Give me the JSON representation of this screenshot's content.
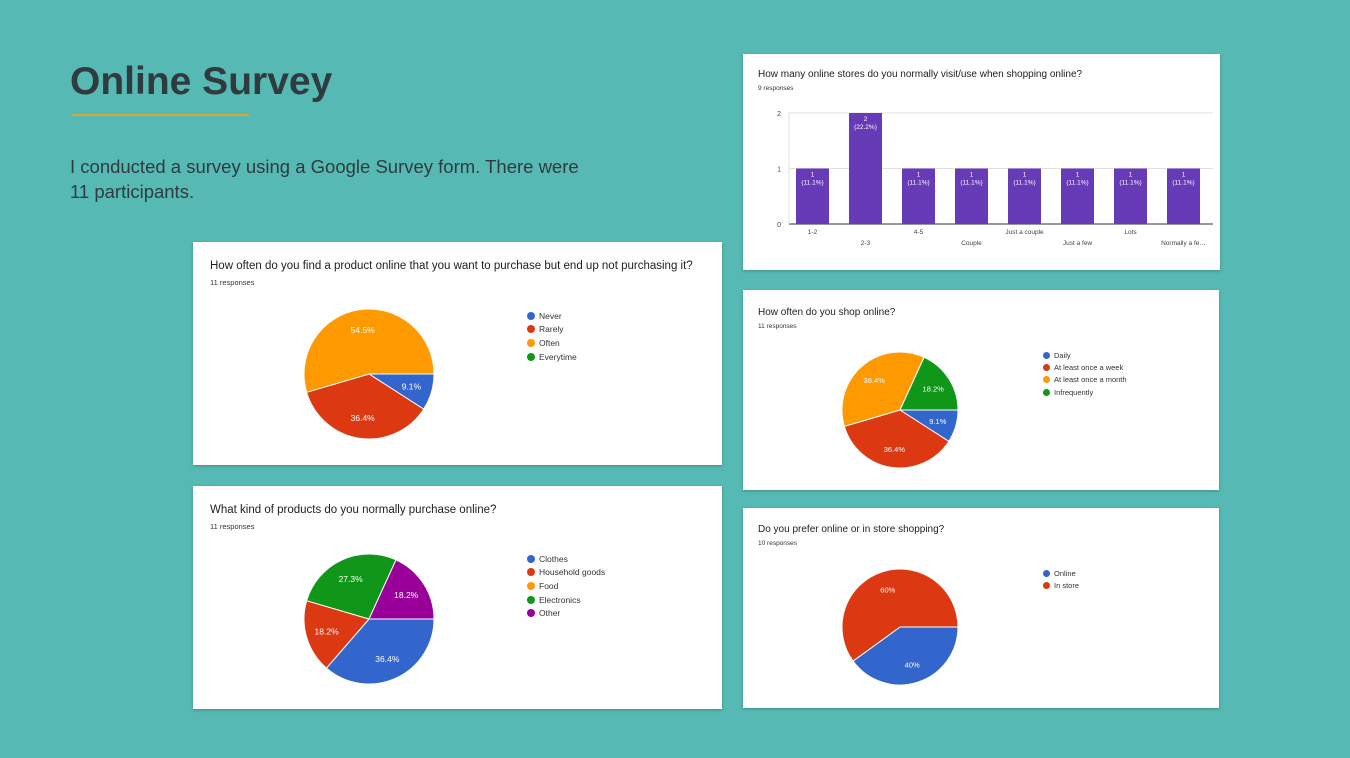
{
  "slide": {
    "title": "Online Survey",
    "intro": "I conducted a survey using a Google Survey form. There were 11 participants."
  },
  "colors": {
    "background": "#57b9b3",
    "rule": "#d3a93a",
    "blue": "#3366cc",
    "red": "#dc3912",
    "orange": "#ff9900",
    "green": "#109618",
    "purple": "#990099",
    "bar": "#673ab7"
  },
  "chart_data": [
    {
      "id": "not-purchasing",
      "type": "pie",
      "title": "How often do you find a product online that you want to purchase but end up not purchasing it?",
      "subtitle": "11 responses",
      "legend_position": "right",
      "labels": [
        "Never",
        "Rarely",
        "Often",
        "Everytime"
      ],
      "values": [
        1,
        4,
        6,
        0
      ],
      "percent_labels": [
        "9.1%",
        "36.4%",
        "54.5%",
        ""
      ],
      "colors": [
        "#3366cc",
        "#dc3912",
        "#ff9900",
        "#109618"
      ]
    },
    {
      "id": "products",
      "type": "pie",
      "title": "What kind of products do you normally purchase online?",
      "subtitle": "11 responses",
      "legend_position": "right",
      "labels": [
        "Clothes",
        "Household goods",
        "Food",
        "Electronics",
        "Other"
      ],
      "values": [
        4,
        2,
        0,
        3,
        2
      ],
      "percent_labels": [
        "36.4%",
        "18.2%",
        "",
        "27.3%",
        "18.2%"
      ],
      "colors": [
        "#3366cc",
        "#dc3912",
        "#ff9900",
        "#109618",
        "#990099"
      ]
    },
    {
      "id": "stores",
      "type": "bar",
      "title": "How many online stores do you normally visit/use when shopping online?",
      "subtitle": "9 responses",
      "categories": [
        "1-2",
        "2-3",
        "4-5",
        "Couple",
        "Just a couple",
        "Just a few",
        "Lots",
        "Normally a fe…"
      ],
      "values": [
        1,
        2,
        1,
        1,
        1,
        1,
        1,
        1
      ],
      "value_labels": [
        "1",
        "2",
        "1",
        "1",
        "1",
        "1",
        "1",
        "1"
      ],
      "percent_labels": [
        "(11.1%)",
        "(22.2%)",
        "(11.1%)",
        "(11.1%)",
        "(11.1%)",
        "(11.1%)",
        "(11.1%)",
        "(11.1%)"
      ],
      "yticks": [
        "0",
        "1",
        "2"
      ],
      "ylim": [
        0,
        2
      ],
      "grid": true,
      "color": "#673ab7"
    },
    {
      "id": "shop-frequency",
      "type": "pie",
      "title": "How often do you shop online?",
      "subtitle": "11 responses",
      "legend_position": "right",
      "labels": [
        "Daily",
        "At least once a week",
        "At least once a month",
        "Infrequently"
      ],
      "values": [
        1,
        4,
        4,
        2
      ],
      "percent_labels": [
        "9.1%",
        "36.4%",
        "36.4%",
        "18.2%"
      ],
      "colors": [
        "#3366cc",
        "#dc3912",
        "#ff9900",
        "#109618"
      ]
    },
    {
      "id": "online-vs-store",
      "type": "pie",
      "title": "Do you prefer online or in store shopping?",
      "subtitle": "10 responses",
      "legend_position": "right",
      "labels": [
        "Online",
        "In store"
      ],
      "values": [
        4,
        6
      ],
      "percent_labels": [
        "40%",
        "60%"
      ],
      "colors": [
        "#3366cc",
        "#dc3912"
      ]
    }
  ]
}
